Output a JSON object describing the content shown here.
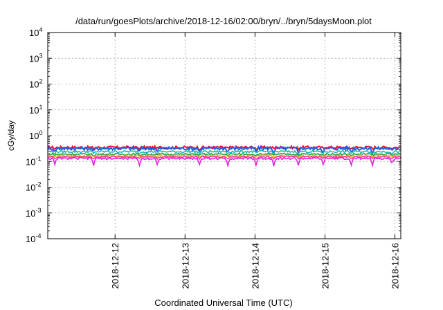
{
  "chart_data": {
    "type": "line",
    "title": "/data/run/goesPlots/archive/2018-12-16/02:00/bryn/../bryn/5daysMoon.plot",
    "xlabel": "Coordinated Universal Time (UTC)",
    "ylabel": "cGy/day",
    "y_scale": "log",
    "ylim_exponents": [
      -4,
      4
    ],
    "yticks": [
      {
        "base": "10",
        "exp": "4"
      },
      {
        "base": "10",
        "exp": "3"
      },
      {
        "base": "10",
        "exp": "2"
      },
      {
        "base": "10",
        "exp": "1"
      },
      {
        "base": "10",
        "exp": "0"
      },
      {
        "base": "10",
        "exp": "-1"
      },
      {
        "base": "10",
        "exp": "-2"
      },
      {
        "base": "10",
        "exp": "-3"
      },
      {
        "base": "10",
        "exp": "-4"
      }
    ],
    "x_range_days": [
      "2018-12-11 00:55",
      "2018-12-16 02:00"
    ],
    "xticks": [
      "2018-12-12",
      "2018-12-13",
      "2018-12-14",
      "2018-12-15",
      "2018-12-16"
    ],
    "grid": true,
    "series": [
      {
        "color": "#e8102c",
        "level": 0.35,
        "noise": 0.12,
        "dips": 0.1
      },
      {
        "color": "#1f5de8",
        "level": 0.32,
        "noise": 0.15,
        "dips": 0.25
      },
      {
        "color": "#1fb8b0",
        "level": 0.24,
        "noise": 0.1,
        "dips": 0.15
      },
      {
        "color": "#2f9a2f",
        "level": 0.19,
        "noise": 0.08,
        "dips": 0.1
      },
      {
        "color": "#f2b020",
        "level": 0.165,
        "noise": 0.07,
        "dips": 0.1
      },
      {
        "color": "#ff3aa0",
        "level": 0.15,
        "noise": 0.07,
        "dips": 0.15
      },
      {
        "color": "#e020e0",
        "level": 0.13,
        "noise": 0.09,
        "dips": 0.45
      }
    ]
  }
}
